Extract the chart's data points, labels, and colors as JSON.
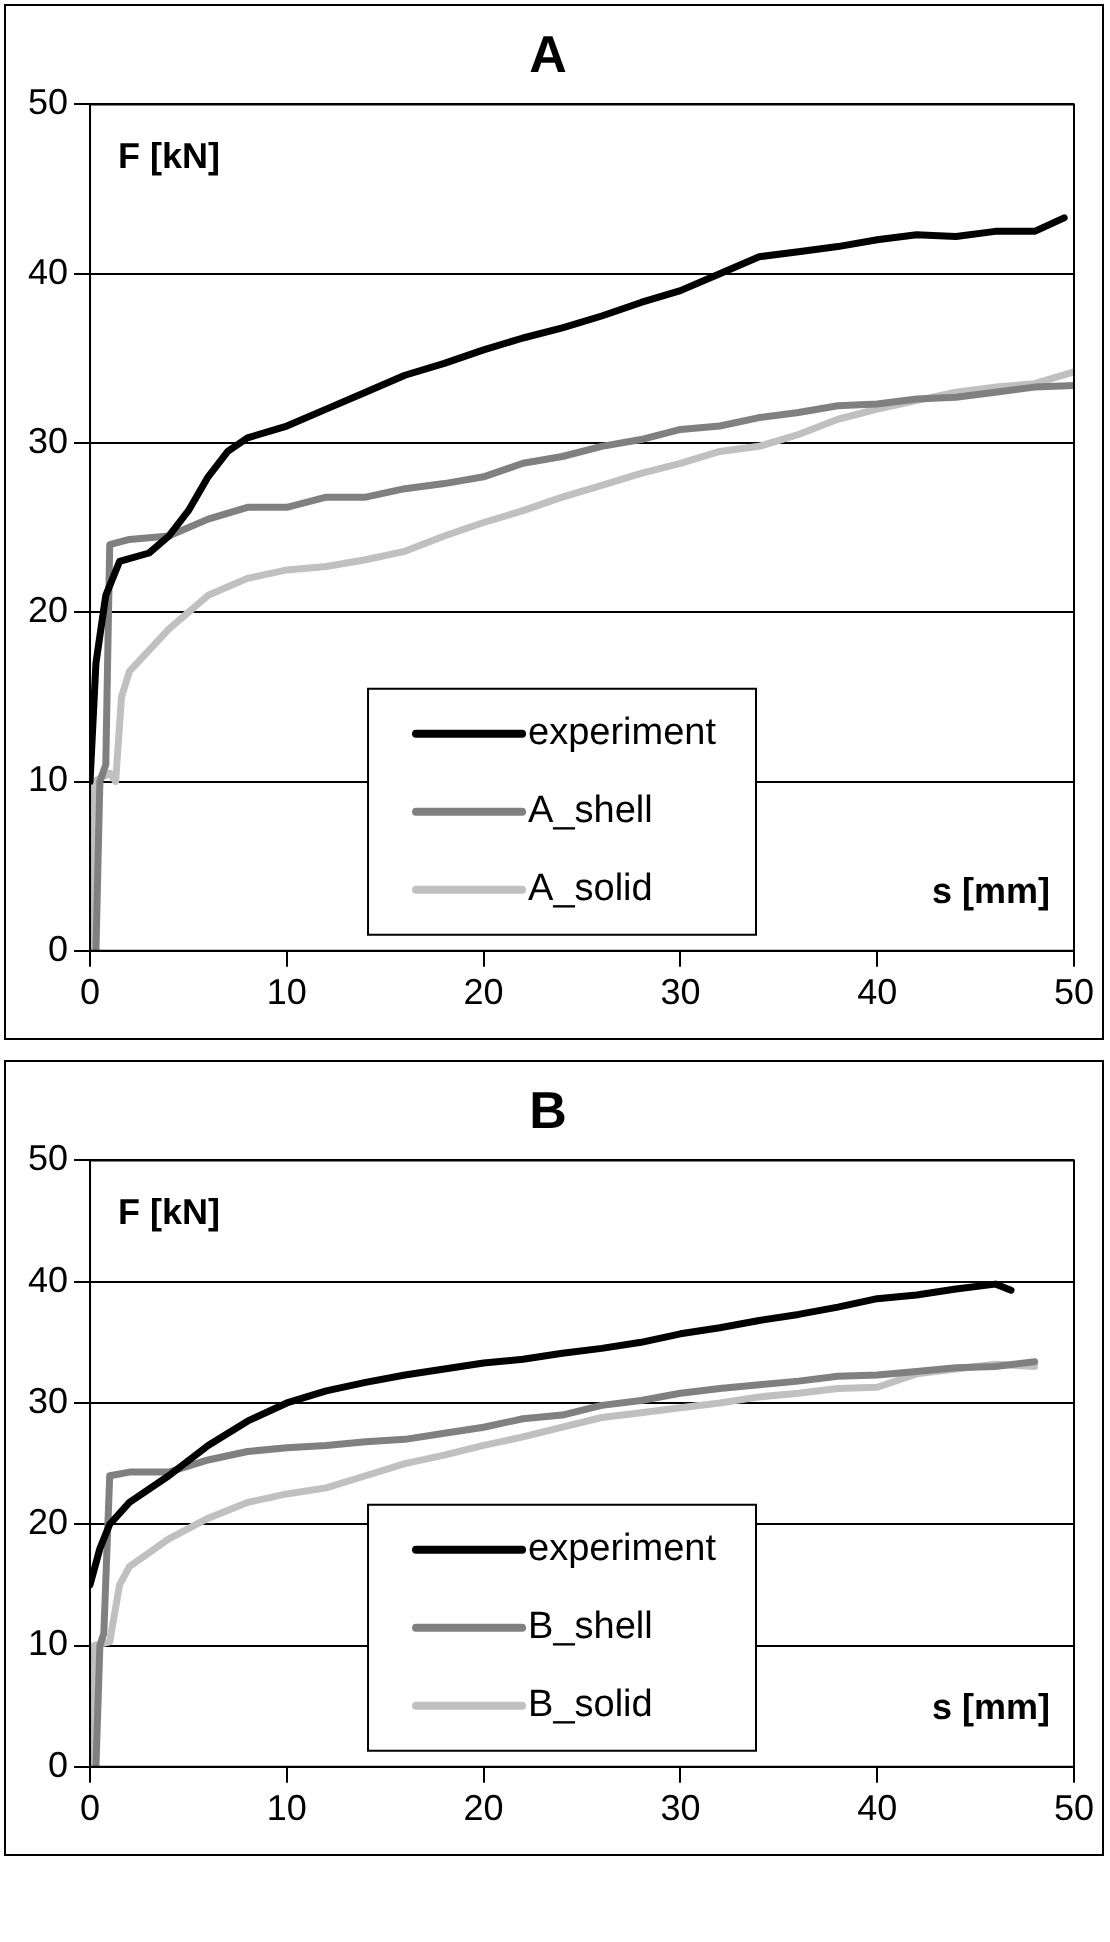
{
  "chart_data": [
    {
      "type": "line",
      "title": "A",
      "xlabel": "s [mm]",
      "ylabel": "F [kN]",
      "xlim": [
        0,
        50
      ],
      "xticks": [
        0,
        10,
        20,
        30,
        40,
        50
      ],
      "ylim": [
        0,
        50
      ],
      "yticks": [
        0,
        10,
        20,
        30,
        40,
        50
      ],
      "grid": "y",
      "legend": "bottom",
      "marker": "none",
      "line_style": "solid",
      "series": [
        {
          "name": "experiment",
          "color": "#000000",
          "x": [
            0,
            0.3,
            0.8,
            1.5,
            3,
            4,
            5,
            6,
            7,
            8,
            10,
            12,
            14,
            16,
            18,
            20,
            22,
            24,
            26,
            28,
            30,
            32,
            34,
            36,
            38,
            40,
            42,
            44,
            46,
            48,
            49.5
          ],
          "values": [
            10,
            17,
            21,
            23,
            23.5,
            24.5,
            26,
            28,
            29.5,
            30.3,
            31,
            32,
            33,
            34,
            34.7,
            35.5,
            36.2,
            36.8,
            37.5,
            38.3,
            39,
            40,
            41,
            41.3,
            41.6,
            42,
            42.3,
            42.2,
            42.5,
            42.5,
            43.3
          ]
        },
        {
          "name": "A_shell",
          "color": "#808080",
          "x": [
            0.3,
            0.5,
            0.8,
            1,
            2,
            4,
            6,
            8,
            10,
            12,
            14,
            16,
            18,
            20,
            22,
            24,
            26,
            28,
            30,
            32,
            34,
            36,
            38,
            40,
            42,
            44,
            46,
            48,
            50
          ],
          "values": [
            0,
            10,
            11,
            24,
            24.3,
            24.5,
            25.5,
            26.2,
            26.2,
            26.8,
            26.8,
            27.3,
            27.6,
            28,
            28.8,
            29.2,
            29.8,
            30.2,
            30.8,
            31,
            31.5,
            31.8,
            32.2,
            32.3,
            32.6,
            32.7,
            33,
            33.3,
            33.4
          ]
        },
        {
          "name": "A_solid",
          "color": "#c0c0c0",
          "x": [
            0,
            0.2,
            1,
            1.3,
            1.6,
            2,
            4,
            6,
            8,
            10,
            12,
            14,
            16,
            18,
            20,
            22,
            24,
            26,
            28,
            30,
            32,
            34,
            36,
            38,
            40,
            42,
            44,
            46,
            48,
            50
          ],
          "values": [
            0,
            10,
            10.5,
            10,
            15,
            16.5,
            19,
            21,
            22,
            22.5,
            22.7,
            23.1,
            23.6,
            24.5,
            25.3,
            26,
            26.8,
            27.5,
            28.2,
            28.8,
            29.5,
            29.8,
            30.5,
            31.4,
            32,
            32.5,
            33,
            33.3,
            33.5,
            34.2
          ]
        }
      ]
    },
    {
      "type": "line",
      "title": "B",
      "xlabel": "s [mm]",
      "ylabel": "F [kN]",
      "xlim": [
        0,
        50
      ],
      "xticks": [
        0,
        10,
        20,
        30,
        40,
        50
      ],
      "ylim": [
        0,
        50
      ],
      "yticks": [
        0,
        10,
        20,
        30,
        40,
        50
      ],
      "grid": "y",
      "legend": "bottom",
      "marker": "none",
      "line_style": "solid",
      "series": [
        {
          "name": "experiment",
          "color": "#000000",
          "x": [
            0,
            0.5,
            1,
            2,
            4,
            6,
            8,
            10,
            12,
            14,
            16,
            18,
            20,
            22,
            24,
            26,
            28,
            30,
            32,
            34,
            36,
            38,
            40,
            42,
            44,
            46,
            46.8
          ],
          "values": [
            15,
            18,
            20,
            21.8,
            24,
            26.5,
            28.5,
            30,
            31,
            31.7,
            32.3,
            32.8,
            33.3,
            33.6,
            34.1,
            34.5,
            35,
            35.7,
            36.2,
            36.8,
            37.3,
            37.9,
            38.6,
            38.9,
            39.4,
            39.8,
            39.3
          ]
        },
        {
          "name": "B_shell",
          "color": "#808080",
          "x": [
            0.3,
            0.5,
            0.7,
            1,
            2,
            4,
            6,
            8,
            10,
            12,
            14,
            16,
            18,
            20,
            22,
            24,
            26,
            28,
            30,
            32,
            34,
            36,
            38,
            40,
            42,
            44,
            46,
            48
          ],
          "values": [
            0,
            10,
            11,
            24,
            24.3,
            24.3,
            25.3,
            26,
            26.3,
            26.5,
            26.8,
            27,
            27.5,
            28,
            28.7,
            29,
            29.8,
            30.2,
            30.8,
            31.2,
            31.5,
            31.8,
            32.2,
            32.3,
            32.6,
            32.9,
            33,
            33.4
          ]
        },
        {
          "name": "B_solid",
          "color": "#c0c0c0",
          "x": [
            0,
            0.2,
            1,
            1.5,
            2,
            4,
            6,
            8,
            10,
            12,
            14,
            16,
            18,
            20,
            22,
            24,
            26,
            28,
            30,
            32,
            34,
            36,
            38,
            40,
            42,
            44,
            46,
            48
          ],
          "values": [
            0,
            10,
            10.3,
            15,
            16.5,
            18.8,
            20.5,
            21.8,
            22.5,
            23,
            24,
            25,
            25.7,
            26.5,
            27.2,
            28,
            28.8,
            29.2,
            29.6,
            30,
            30.5,
            30.8,
            31.2,
            31.3,
            32.4,
            32.8,
            33.2,
            33
          ]
        }
      ]
    }
  ]
}
